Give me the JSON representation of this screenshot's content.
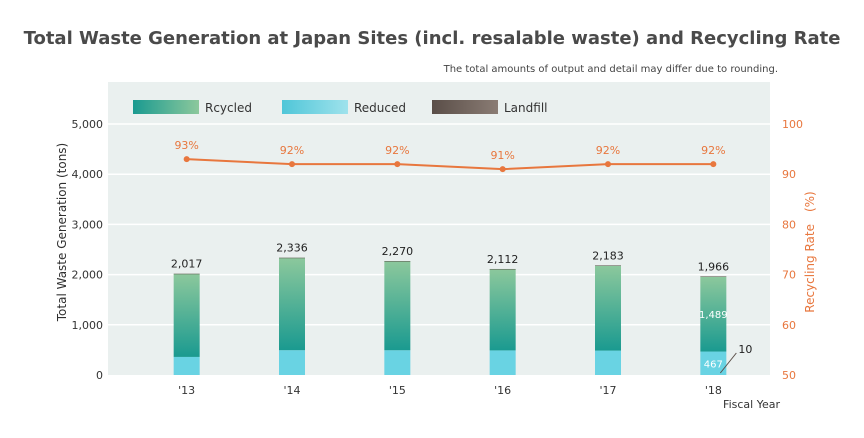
{
  "title": "Total Waste Generation at Japan Sites (incl. resalable waste) and Recycling Rate",
  "note": "The total amounts of output and detail may differ due to rounding.",
  "colors": {
    "recycled_top": "#8cc89c",
    "recycled_bottom": "#1a9a90",
    "reduced": "#69d3e3",
    "landfill": "#5a4e48",
    "line": "#e8773e",
    "plot_bg": "#eaf0ef"
  },
  "chart_data": {
    "type": "bar",
    "title": "Total Waste Generation at Japan Sites (incl. resalable waste) and Recycling Rate",
    "categories": [
      "'13",
      "'14",
      "'15",
      "'16",
      "'17",
      "'18"
    ],
    "series": [
      {
        "name": "Rcycled",
        "values": [
          1655,
          1840,
          1775,
          1620,
          1695,
          1489
        ]
      },
      {
        "name": "Reduced",
        "values": [
          360,
          494,
          493,
          490,
          486,
          467
        ]
      },
      {
        "name": "Landfill",
        "values": [
          2,
          2,
          2,
          2,
          2,
          10
        ]
      }
    ],
    "totals": [
      2017,
      2336,
      2270,
      2112,
      2183,
      1966
    ],
    "total_labels": [
      "2,017",
      "2,336",
      "2,270",
      "2,112",
      "2,183",
      "1,966"
    ],
    "inbar_labels": {
      "category": "'18",
      "recycled": "1,489",
      "reduced": "467",
      "landfill": "10"
    },
    "recycling_rate": {
      "values": [
        93,
        92,
        92,
        91,
        92,
        92
      ],
      "labels": [
        "93%",
        "92%",
        "92%",
        "91%",
        "92%",
        "92%"
      ]
    },
    "xlabel": "Fiscal Year",
    "ylabel": "Total Waste Generation (tons)",
    "ylabel_right": "Recycling Rate　(%)",
    "ylim": [
      0,
      5000
    ],
    "yticks": [
      "0",
      "1,000",
      "2,000",
      "3,000",
      "4,000",
      "5,000"
    ],
    "ylim_right": [
      50,
      100
    ],
    "yticks_right": [
      "50",
      "60",
      "70",
      "80",
      "90",
      "100"
    ],
    "legend_position": "top-left",
    "grid": true
  }
}
